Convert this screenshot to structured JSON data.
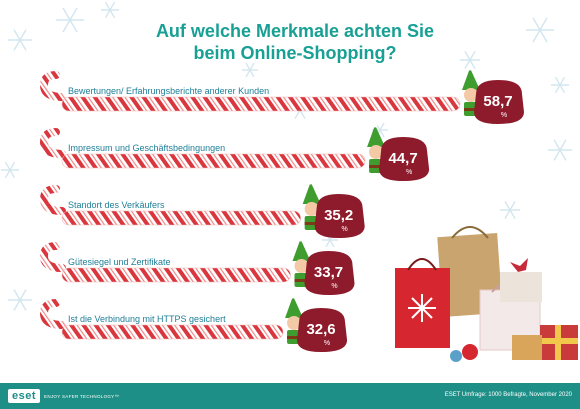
{
  "title_line1": "Auf welche Merkmale achten Sie",
  "title_line2": "beim Online-Shopping?",
  "brand": {
    "logo": "eset",
    "tagline": "ENJOY SAFER TECHNOLOGY™"
  },
  "source": "ESET Umfrage: 1000 Befragte, November 2020",
  "colors": {
    "teal": "#1d8f87",
    "candy_red": "#d32f2f",
    "badge": "#8e1b2b",
    "elf_green": "#3f9d2f"
  },
  "chart_data": {
    "type": "bar",
    "unit": "%",
    "categories": [
      "Bewertungen/ Erfahrungsberichte anderer Kunden",
      "Impressum und Geschäftsbedingungen",
      "Standort des Verkäufers",
      "Gütesiegel und Zertifikate",
      "Ist die Verbindung mit HTTPS gesichert"
    ],
    "values": [
      "58,7",
      "44,7",
      "35,2",
      "33,7",
      "32,6"
    ],
    "ylim": [
      0,
      58.7
    ]
  }
}
